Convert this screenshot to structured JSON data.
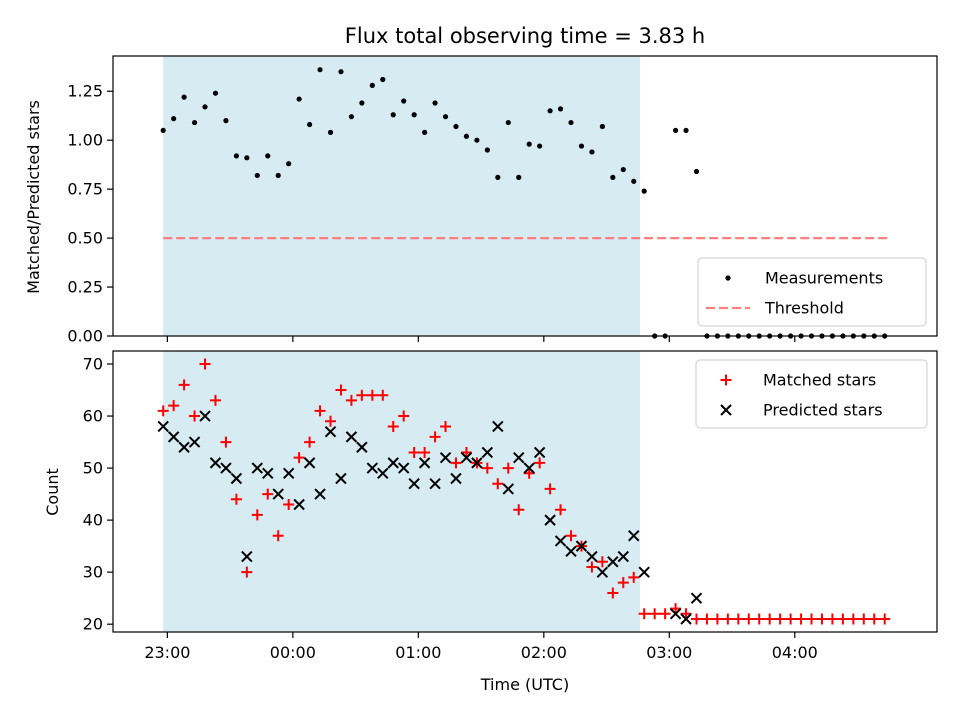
{
  "chart_data": [
    {
      "type": "scatter",
      "title": "Flux total observing time = 3.83 h",
      "ylabel": "Matched/Predicted stars",
      "ylim": [
        0,
        1.43
      ],
      "yticks": [
        0.0,
        0.25,
        0.5,
        0.75,
        1.0,
        1.25
      ],
      "ytick_labels": [
        "0.00",
        "0.25",
        "0.50",
        "0.75",
        "1.00",
        "1.25"
      ],
      "shaded_span": {
        "start": "22:58",
        "end": "02:46",
        "color": "#add8e6"
      },
      "legend_position": "lower-right",
      "series": [
        {
          "name": "Measurements",
          "marker": "dot",
          "color": "#000000",
          "points": [
            [
              "22:58",
              1.05
            ],
            [
              "23:03",
              1.11
            ],
            [
              "23:08",
              1.22
            ],
            [
              "23:13",
              1.09
            ],
            [
              "23:18",
              1.17
            ],
            [
              "23:23",
              1.24
            ],
            [
              "23:28",
              1.1
            ],
            [
              "23:33",
              0.92
            ],
            [
              "23:38",
              0.91
            ],
            [
              "23:43",
              0.82
            ],
            [
              "23:48",
              0.92
            ],
            [
              "23:53",
              0.82
            ],
            [
              "23:58",
              0.88
            ],
            [
              "00:03",
              1.21
            ],
            [
              "00:08",
              1.08
            ],
            [
              "00:13",
              1.36
            ],
            [
              "00:18",
              1.04
            ],
            [
              "00:23",
              1.35
            ],
            [
              "00:28",
              1.12
            ],
            [
              "00:33",
              1.19
            ],
            [
              "00:38",
              1.28
            ],
            [
              "00:43",
              1.31
            ],
            [
              "00:48",
              1.13
            ],
            [
              "00:53",
              1.2
            ],
            [
              "00:58",
              1.13
            ],
            [
              "01:03",
              1.04
            ],
            [
              "01:08",
              1.19
            ],
            [
              "01:13",
              1.12
            ],
            [
              "01:18",
              1.07
            ],
            [
              "01:23",
              1.02
            ],
            [
              "01:28",
              1.0
            ],
            [
              "01:33",
              0.95
            ],
            [
              "01:38",
              0.81
            ],
            [
              "01:43",
              1.09
            ],
            [
              "01:48",
              0.81
            ],
            [
              "01:53",
              0.98
            ],
            [
              "01:58",
              0.97
            ],
            [
              "02:03",
              1.15
            ],
            [
              "02:08",
              1.16
            ],
            [
              "02:13",
              1.09
            ],
            [
              "02:18",
              0.97
            ],
            [
              "02:23",
              0.94
            ],
            [
              "02:28",
              1.07
            ],
            [
              "02:33",
              0.81
            ],
            [
              "02:38",
              0.85
            ],
            [
              "02:43",
              0.79
            ],
            [
              "02:48",
              0.74
            ],
            [
              "02:53",
              0.0
            ],
            [
              "02:58",
              0.0
            ],
            [
              "03:03",
              1.05
            ],
            [
              "03:08",
              1.05
            ],
            [
              "03:13",
              0.84
            ],
            [
              "03:18",
              0.0
            ],
            [
              "03:23",
              0.0
            ],
            [
              "03:28",
              0.0
            ],
            [
              "03:33",
              0.0
            ],
            [
              "03:38",
              0.0
            ],
            [
              "03:43",
              0.0
            ],
            [
              "03:48",
              0.0
            ],
            [
              "03:53",
              0.0
            ],
            [
              "03:58",
              0.0
            ],
            [
              "04:03",
              0.0
            ],
            [
              "04:08",
              0.0
            ],
            [
              "04:13",
              0.0
            ],
            [
              "04:18",
              0.0
            ],
            [
              "04:23",
              0.0
            ],
            [
              "04:28",
              0.0
            ],
            [
              "04:33",
              0.0
            ],
            [
              "04:38",
              0.0
            ],
            [
              "04:43",
              0.0
            ]
          ]
        },
        {
          "name": "Threshold",
          "marker": "dashed-line",
          "color": "#ff7f7f",
          "points": [
            [
              "22:58",
              0.5
            ],
            [
              "04:45",
              0.5
            ]
          ]
        }
      ]
    },
    {
      "type": "scatter",
      "xlabel": "Time (UTC)",
      "ylabel": "Count",
      "ylim": [
        18.5,
        72.5
      ],
      "yticks": [
        20,
        30,
        40,
        50,
        60,
        70
      ],
      "xticks": [
        "23:00",
        "00:00",
        "01:00",
        "02:00",
        "03:00",
        "04:00"
      ],
      "shaded_span": {
        "start": "22:58",
        "end": "02:46",
        "color": "#add8e6"
      },
      "legend_position": "upper-right",
      "series": [
        {
          "name": "Matched stars",
          "marker": "plus",
          "color": "#ff0000",
          "points": [
            [
              "22:58",
              61
            ],
            [
              "23:03",
              62
            ],
            [
              "23:08",
              66
            ],
            [
              "23:13",
              60
            ],
            [
              "23:18",
              70
            ],
            [
              "23:23",
              63
            ],
            [
              "23:28",
              55
            ],
            [
              "23:33",
              44
            ],
            [
              "23:38",
              30
            ],
            [
              "23:43",
              41
            ],
            [
              "23:48",
              45
            ],
            [
              "23:53",
              37
            ],
            [
              "23:58",
              43
            ],
            [
              "00:03",
              52
            ],
            [
              "00:08",
              55
            ],
            [
              "00:13",
              61
            ],
            [
              "00:18",
              59
            ],
            [
              "00:23",
              65
            ],
            [
              "00:28",
              63
            ],
            [
              "00:33",
              64
            ],
            [
              "00:38",
              64
            ],
            [
              "00:43",
              64
            ],
            [
              "00:48",
              58
            ],
            [
              "00:53",
              60
            ],
            [
              "00:58",
              53
            ],
            [
              "01:03",
              53
            ],
            [
              "01:08",
              56
            ],
            [
              "01:13",
              58
            ],
            [
              "01:18",
              51
            ],
            [
              "01:23",
              53
            ],
            [
              "01:28",
              51
            ],
            [
              "01:33",
              50
            ],
            [
              "01:38",
              47
            ],
            [
              "01:43",
              50
            ],
            [
              "01:48",
              42
            ],
            [
              "01:53",
              49
            ],
            [
              "01:58",
              51
            ],
            [
              "02:03",
              46
            ],
            [
              "02:08",
              42
            ],
            [
              "02:13",
              37
            ],
            [
              "02:18",
              35
            ],
            [
              "02:23",
              31
            ],
            [
              "02:28",
              32
            ],
            [
              "02:33",
              26
            ],
            [
              "02:38",
              28
            ],
            [
              "02:43",
              29
            ],
            [
              "02:48",
              22
            ],
            [
              "02:53",
              22
            ],
            [
              "02:58",
              22
            ],
            [
              "03:03",
              23
            ],
            [
              "03:08",
              22
            ],
            [
              "03:13",
              21
            ],
            [
              "03:18",
              21
            ],
            [
              "03:23",
              21
            ],
            [
              "03:28",
              21
            ],
            [
              "03:33",
              21
            ],
            [
              "03:38",
              21
            ],
            [
              "03:43",
              21
            ],
            [
              "03:48",
              21
            ],
            [
              "03:53",
              21
            ],
            [
              "03:58",
              21
            ],
            [
              "04:03",
              21
            ],
            [
              "04:08",
              21
            ],
            [
              "04:13",
              21
            ],
            [
              "04:18",
              21
            ],
            [
              "04:23",
              21
            ],
            [
              "04:28",
              21
            ],
            [
              "04:33",
              21
            ],
            [
              "04:38",
              21
            ],
            [
              "04:43",
              21
            ]
          ]
        },
        {
          "name": "Predicted stars",
          "marker": "x",
          "color": "#000000",
          "points": [
            [
              "22:58",
              58
            ],
            [
              "23:03",
              56
            ],
            [
              "23:08",
              54
            ],
            [
              "23:13",
              55
            ],
            [
              "23:18",
              60
            ],
            [
              "23:23",
              51
            ],
            [
              "23:28",
              50
            ],
            [
              "23:33",
              48
            ],
            [
              "23:38",
              33
            ],
            [
              "23:43",
              50
            ],
            [
              "23:48",
              49
            ],
            [
              "23:53",
              45
            ],
            [
              "23:58",
              49
            ],
            [
              "00:03",
              43
            ],
            [
              "00:08",
              51
            ],
            [
              "00:13",
              45
            ],
            [
              "00:18",
              57
            ],
            [
              "00:23",
              48
            ],
            [
              "00:28",
              56
            ],
            [
              "00:33",
              54
            ],
            [
              "00:38",
              50
            ],
            [
              "00:43",
              49
            ],
            [
              "00:48",
              51
            ],
            [
              "00:53",
              50
            ],
            [
              "00:58",
              47
            ],
            [
              "01:03",
              51
            ],
            [
              "01:08",
              47
            ],
            [
              "01:13",
              52
            ],
            [
              "01:18",
              48
            ],
            [
              "01:23",
              52
            ],
            [
              "01:28",
              51
            ],
            [
              "01:33",
              53
            ],
            [
              "01:38",
              58
            ],
            [
              "01:43",
              46
            ],
            [
              "01:48",
              52
            ],
            [
              "01:53",
              50
            ],
            [
              "01:58",
              53
            ],
            [
              "02:03",
              40
            ],
            [
              "02:08",
              36
            ],
            [
              "02:13",
              34
            ],
            [
              "02:18",
              35
            ],
            [
              "02:23",
              33
            ],
            [
              "02:28",
              30
            ],
            [
              "02:33",
              32
            ],
            [
              "02:38",
              33
            ],
            [
              "02:43",
              37
            ],
            [
              "02:48",
              30
            ],
            [
              "03:03",
              22
            ],
            [
              "03:08",
              21
            ],
            [
              "03:13",
              25
            ]
          ]
        }
      ]
    }
  ]
}
